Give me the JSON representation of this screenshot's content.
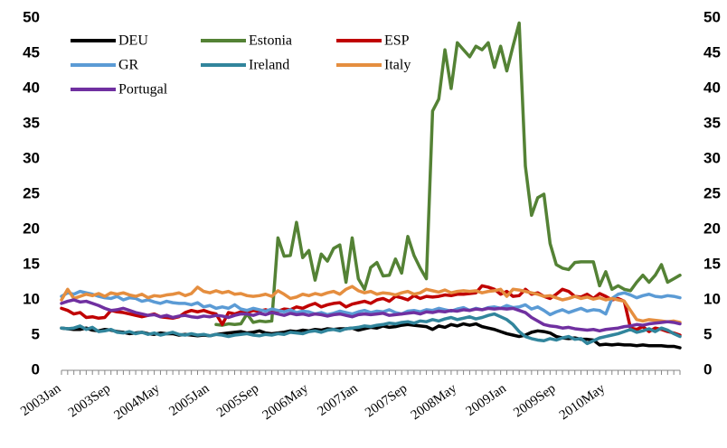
{
  "chart_data": {
    "type": "line",
    "categories": [
      "2003Jan",
      null,
      null,
      null,
      null,
      null,
      null,
      null,
      "2003Sep",
      null,
      null,
      null,
      null,
      null,
      null,
      null,
      "2004May",
      null,
      null,
      null,
      null,
      null,
      null,
      null,
      "2005Jan",
      null,
      null,
      null,
      null,
      null,
      null,
      null,
      "2005Sep",
      null,
      null,
      null,
      null,
      null,
      null,
      null,
      "2006May",
      null,
      null,
      null,
      null,
      null,
      null,
      null,
      "2007Jan",
      null,
      null,
      null,
      null,
      null,
      null,
      null,
      "2007Sep",
      null,
      null,
      null,
      null,
      null,
      null,
      null,
      "2008May",
      null,
      null,
      null,
      null,
      null,
      null,
      null,
      "2009Jan",
      null,
      null,
      null,
      null,
      null,
      null,
      null,
      "2009Sep",
      null,
      null,
      null,
      null,
      null,
      null,
      null,
      "2010May",
      null,
      null,
      null,
      null,
      null,
      null,
      null,
      null,
      null,
      null,
      null,
      null
    ],
    "series": [
      {
        "name": "DEU",
        "color": "#000000",
        "values": [
          6.0,
          5.9,
          5.8,
          5.8,
          6.0,
          5.7,
          5.6,
          5.8,
          5.7,
          5.5,
          5.4,
          5.2,
          5.3,
          5.4,
          5.2,
          5.1,
          5.3,
          5.2,
          5.2,
          5.0,
          5.1,
          5.0,
          4.9,
          5.0,
          4.9,
          5.1,
          5.2,
          5.3,
          5.4,
          5.5,
          5.3,
          5.4,
          5.6,
          5.3,
          5.2,
          5.3,
          5.4,
          5.6,
          5.5,
          5.7,
          5.6,
          5.8,
          5.7,
          5.9,
          5.8,
          5.9,
          5.9,
          6.0,
          5.7,
          5.9,
          6.1,
          6.0,
          6.3,
          6.1,
          6.2,
          6.4,
          6.5,
          6.4,
          6.3,
          6.2,
          5.8,
          6.3,
          6.1,
          6.5,
          6.3,
          6.6,
          6.4,
          6.6,
          6.2,
          6.0,
          5.8,
          5.5,
          5.2,
          5.0,
          4.8,
          5.0,
          5.4,
          5.6,
          5.5,
          5.3,
          4.8,
          4.6,
          4.5,
          4.6,
          4.4,
          4.4,
          4.3,
          3.6,
          3.7,
          3.6,
          3.7,
          3.6,
          3.6,
          3.5,
          3.6,
          3.5,
          3.5,
          3.5,
          3.4,
          3.4,
          3.2
        ]
      },
      {
        "name": "Estonia",
        "color": "#548235",
        "values": [
          null,
          null,
          null,
          null,
          null,
          null,
          null,
          null,
          null,
          null,
          null,
          null,
          null,
          null,
          null,
          null,
          null,
          null,
          null,
          null,
          null,
          null,
          null,
          null,
          null,
          6.5,
          6.4,
          6.6,
          6.5,
          6.6,
          8.0,
          6.8,
          7.0,
          6.9,
          7.0,
          18.8,
          16.2,
          16.3,
          21.0,
          16.0,
          17.0,
          12.8,
          16.5,
          15.5,
          17.3,
          17.8,
          12.5,
          18.8,
          13.0,
          11.5,
          14.6,
          15.3,
          13.4,
          13.5,
          15.8,
          13.8,
          19.0,
          16.3,
          14.5,
          13.0,
          36.8,
          38.5,
          45.5,
          40.0,
          46.5,
          45.5,
          44.5,
          46.0,
          45.5,
          46.5,
          43.0,
          46.0,
          42.5,
          46.0,
          49.3,
          29.0,
          22.0,
          24.5,
          25.0,
          18.0,
          15.0,
          14.5,
          14.3,
          15.3,
          15.4,
          15.4,
          15.4,
          12.0,
          14.0,
          11.5,
          12.0,
          11.5,
          11.3,
          12.5,
          13.5,
          12.5,
          13.5,
          15.0,
          12.5,
          13.0,
          13.5
        ]
      },
      {
        "name": "ESP",
        "color": "#c00000",
        "values": [
          8.8,
          8.5,
          8.0,
          8.2,
          7.5,
          7.6,
          7.4,
          7.5,
          8.5,
          8.3,
          8.2,
          8.0,
          7.8,
          7.6,
          7.8,
          8.0,
          7.6,
          7.5,
          7.4,
          7.6,
          8.2,
          8.5,
          8.3,
          8.5,
          8.2,
          8.0,
          6.5,
          8.2,
          8.0,
          8.3,
          8.2,
          8.5,
          8.4,
          8.6,
          8.3,
          8.4,
          8.7,
          8.6,
          9.0,
          8.8,
          9.2,
          9.5,
          9.0,
          9.3,
          9.5,
          9.6,
          9.0,
          9.4,
          9.6,
          9.8,
          9.5,
          10.0,
          10.2,
          9.8,
          10.5,
          10.3,
          10.0,
          10.6,
          10.2,
          10.5,
          10.4,
          10.5,
          10.7,
          10.6,
          10.8,
          10.8,
          10.9,
          11.0,
          12.0,
          11.8,
          11.5,
          10.8,
          11.2,
          10.5,
          10.6,
          11.5,
          10.8,
          11.0,
          10.5,
          10.2,
          10.8,
          11.5,
          11.2,
          10.5,
          10.4,
          10.8,
          10.2,
          10.9,
          10.5,
          10.0,
          10.2,
          9.8,
          6.0,
          5.8,
          6.2,
          5.5,
          6.0,
          5.8,
          5.5,
          5.3,
          5.0
        ]
      },
      {
        "name": "GR",
        "color": "#5b9bd5",
        "values": [
          10.5,
          11.0,
          10.8,
          11.2,
          11.0,
          10.8,
          10.5,
          10.3,
          10.2,
          10.5,
          10.0,
          10.3,
          10.2,
          9.8,
          10.0,
          9.7,
          9.5,
          9.8,
          9.6,
          9.5,
          9.5,
          9.3,
          9.6,
          9.0,
          9.2,
          8.8,
          9.0,
          8.8,
          9.3,
          8.7,
          8.5,
          8.8,
          8.6,
          8.4,
          8.7,
          8.5,
          8.3,
          8.6,
          8.2,
          8.4,
          8.3,
          8.0,
          8.2,
          7.9,
          8.1,
          8.4,
          8.2,
          8.0,
          8.3,
          8.5,
          8.2,
          8.4,
          8.3,
          8.6,
          8.2,
          8.0,
          8.4,
          8.5,
          8.3,
          8.6,
          8.5,
          8.8,
          8.6,
          8.4,
          8.7,
          8.9,
          8.5,
          8.8,
          8.6,
          8.9,
          9.0,
          8.8,
          9.2,
          8.9,
          9.0,
          9.3,
          8.7,
          9.0,
          8.5,
          7.9,
          8.3,
          8.6,
          8.2,
          8.5,
          8.8,
          8.4,
          8.6,
          8.5,
          8.0,
          10.2,
          10.8,
          11.0,
          10.7,
          10.3,
          10.6,
          10.8,
          10.5,
          10.4,
          10.6,
          10.5,
          10.3
        ]
      },
      {
        "name": "Ireland",
        "color": "#31859c",
        "values": [
          6.0,
          5.9,
          6.0,
          6.3,
          5.8,
          6.1,
          5.5,
          5.6,
          5.8,
          5.4,
          5.3,
          5.5,
          5.2,
          5.4,
          5.1,
          5.3,
          5.0,
          5.2,
          5.4,
          5.1,
          5.0,
          5.2,
          5.0,
          5.1,
          4.9,
          5.1,
          5.0,
          4.8,
          5.0,
          5.1,
          5.2,
          5.0,
          4.9,
          5.1,
          5.0,
          5.2,
          5.1,
          5.4,
          5.3,
          5.2,
          5.5,
          5.6,
          5.4,
          5.7,
          5.8,
          5.6,
          5.9,
          6.0,
          6.1,
          6.3,
          6.2,
          6.4,
          6.5,
          6.7,
          6.6,
          6.8,
          6.9,
          6.7,
          7.0,
          6.9,
          7.2,
          7.0,
          7.3,
          7.5,
          7.2,
          7.4,
          7.6,
          7.3,
          7.5,
          7.8,
          8.0,
          7.6,
          7.2,
          6.5,
          5.5,
          4.8,
          4.5,
          4.3,
          4.2,
          4.5,
          4.3,
          4.6,
          4.8,
          4.4,
          4.5,
          3.8,
          4.2,
          4.6,
          4.8,
          5.0,
          5.2,
          5.5,
          5.8,
          5.4,
          5.6,
          5.9,
          5.5,
          6.0,
          5.7,
          5.2,
          4.8
        ]
      },
      {
        "name": "Italy",
        "color": "#e58e3f",
        "values": [
          10.0,
          11.5,
          10.2,
          10.5,
          10.8,
          10.6,
          10.9,
          10.5,
          11.0,
          10.8,
          11.0,
          10.7,
          10.5,
          10.8,
          10.3,
          10.6,
          10.5,
          10.7,
          10.8,
          11.0,
          10.6,
          10.9,
          11.8,
          11.2,
          11.0,
          11.3,
          11.0,
          11.2,
          10.8,
          10.9,
          10.6,
          10.5,
          10.6,
          10.8,
          10.5,
          11.3,
          10.8,
          10.2,
          10.4,
          10.8,
          10.6,
          10.9,
          10.7,
          11.0,
          11.2,
          10.8,
          11.5,
          11.9,
          11.3,
          11.0,
          11.2,
          10.8,
          11.0,
          10.9,
          10.7,
          11.0,
          11.2,
          10.8,
          11.0,
          11.5,
          11.3,
          11.1,
          11.4,
          11.0,
          11.2,
          11.3,
          11.2,
          11.3,
          11.0,
          11.2,
          11.3,
          11.5,
          10.5,
          11.5,
          11.4,
          11.2,
          11.0,
          10.8,
          10.5,
          10.6,
          10.3,
          10.0,
          10.2,
          10.5,
          10.2,
          10.4,
          10.1,
          10.3,
          10.0,
          10.2,
          10.0,
          9.8,
          8.5,
          7.2,
          7.0,
          7.2,
          7.1,
          7.0,
          6.9,
          7.0,
          6.8
        ]
      },
      {
        "name": "Portugal",
        "color": "#7030a0",
        "values": [
          9.5,
          9.8,
          10.0,
          9.7,
          9.8,
          9.5,
          9.2,
          8.8,
          8.5,
          8.6,
          8.8,
          8.5,
          8.2,
          8.0,
          7.8,
          7.9,
          7.6,
          7.8,
          7.5,
          7.7,
          7.8,
          7.6,
          7.5,
          7.7,
          7.6,
          7.8,
          7.7,
          7.5,
          7.8,
          8.0,
          8.0,
          7.8,
          8.1,
          7.9,
          8.2,
          8.0,
          7.8,
          8.1,
          7.9,
          8.0,
          7.8,
          8.0,
          7.9,
          7.7,
          7.9,
          8.0,
          7.8,
          7.6,
          7.9,
          8.0,
          7.9,
          8.0,
          8.1,
          7.8,
          7.9,
          8.0,
          8.1,
          8.2,
          8.0,
          8.3,
          8.2,
          8.4,
          8.3,
          8.5,
          8.4,
          8.6,
          8.5,
          8.7,
          8.6,
          8.8,
          8.7,
          8.8,
          8.7,
          8.8,
          8.5,
          8.2,
          7.5,
          7.0,
          6.5,
          6.3,
          6.2,
          6.0,
          6.1,
          5.9,
          5.8,
          5.7,
          5.8,
          5.6,
          5.8,
          5.9,
          6.0,
          6.2,
          6.3,
          6.5,
          6.4,
          6.6,
          6.7,
          6.8,
          6.9,
          6.8,
          6.6
        ]
      }
    ],
    "ylim": [
      0,
      50
    ],
    "yticks": [
      0,
      5,
      10,
      15,
      20,
      25,
      30,
      35,
      40,
      45,
      50
    ],
    "y2lim": [
      0,
      50
    ],
    "y2ticks": [
      0,
      5,
      10,
      15,
      20,
      25,
      30,
      35,
      40,
      45,
      50
    ],
    "grid": false,
    "legend": "top-left"
  }
}
